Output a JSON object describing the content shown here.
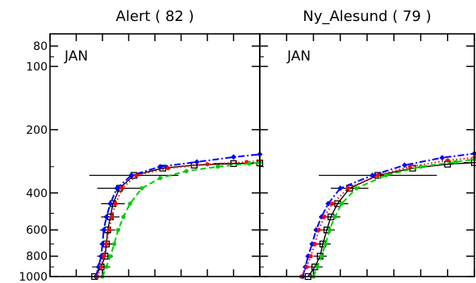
{
  "chart_data": [
    {
      "type": "line",
      "title": "Alert ( 82 )",
      "annotation": "JAN",
      "y_scale": "log",
      "y_reversed": true,
      "ylim": [
        1000,
        70
      ],
      "y_ticks": [
        80,
        100,
        200,
        400,
        600,
        800,
        1000
      ],
      "y_tick_labels": [
        "80",
        "100",
        "200",
        "400",
        "600",
        "800",
        "1000"
      ],
      "x_tick_labels_shown": false,
      "xlim": [
        0,
        8
      ],
      "series": [
        {
          "color": "#000000",
          "style": "solid",
          "marker": "square",
          "points": [
            [
              1.7,
              1000
            ],
            [
              1.95,
              900
            ],
            [
              2.1,
              800
            ],
            [
              2.15,
              700
            ],
            [
              2.2,
              600
            ],
            [
              2.3,
              520
            ],
            [
              2.4,
              450
            ],
            [
              2.65,
              380
            ],
            [
              3.2,
              330
            ],
            [
              4.3,
              305
            ],
            [
              5.5,
              295
            ],
            [
              7.0,
              290
            ],
            [
              8.0,
              288
            ]
          ],
          "errors": [
            0,
            0.35,
            0.3,
            0.25,
            0.3,
            0.35,
            0.45,
            0.85,
            1.7,
            0,
            0,
            0.75,
            0
          ]
        },
        {
          "color": "#0000ff",
          "style": "dashdot",
          "marker": "diamond",
          "points": [
            [
              1.75,
              1000
            ],
            [
              1.85,
              900
            ],
            [
              1.95,
              800
            ],
            [
              2.0,
              700
            ],
            [
              2.05,
              600
            ],
            [
              2.15,
              520
            ],
            [
              2.3,
              450
            ],
            [
              2.55,
              380
            ],
            [
              3.1,
              330
            ],
            [
              4.2,
              300
            ],
            [
              5.6,
              285
            ],
            [
              7.0,
              270
            ],
            [
              8.0,
              262
            ]
          ]
        },
        {
          "color": "#ff0000",
          "style": "dotted",
          "marker": "circle",
          "points": [
            [
              1.8,
              1000
            ],
            [
              1.95,
              900
            ],
            [
              2.05,
              800
            ],
            [
              2.15,
              700
            ],
            [
              2.25,
              600
            ],
            [
              2.35,
              520
            ],
            [
              2.5,
              450
            ],
            [
              2.75,
              380
            ],
            [
              3.3,
              330
            ],
            [
              4.5,
              305
            ],
            [
              6.0,
              292
            ],
            [
              7.5,
              285
            ],
            [
              8.0,
              283
            ]
          ]
        },
        {
          "color": "#00cc00",
          "style": "dashed",
          "marker": "circle",
          "points": [
            [
              2.0,
              1000
            ],
            [
              2.15,
              900
            ],
            [
              2.3,
              800
            ],
            [
              2.45,
              700
            ],
            [
              2.6,
              600
            ],
            [
              2.8,
              520
            ],
            [
              3.05,
              450
            ],
            [
              3.5,
              380
            ],
            [
              4.2,
              340
            ],
            [
              5.2,
              315
            ],
            [
              6.4,
              300
            ],
            [
              7.6,
              290
            ],
            [
              8.0,
              287
            ]
          ]
        }
      ]
    },
    {
      "type": "line",
      "title": "Ny_Alesund ( 79 )",
      "annotation": "JAN",
      "y_scale": "log",
      "y_reversed": true,
      "ylim": [
        1000,
        70
      ],
      "y_ticks": [
        80,
        100,
        200,
        400,
        600,
        800,
        1000
      ],
      "y_tick_labels": [
        "",
        "",
        "",
        "",
        "",
        "",
        ""
      ],
      "x_tick_labels_shown": false,
      "xlim": [
        0,
        8
      ],
      "series": [
        {
          "color": "#000000",
          "style": "solid",
          "marker": "square",
          "points": [
            [
              1.8,
              1000
            ],
            [
              2.05,
              900
            ],
            [
              2.25,
              800
            ],
            [
              2.35,
              700
            ],
            [
              2.5,
              600
            ],
            [
              2.65,
              520
            ],
            [
              2.9,
              450
            ],
            [
              3.35,
              380
            ],
            [
              4.4,
              330
            ],
            [
              5.7,
              305
            ],
            [
              7.0,
              292
            ],
            [
              8.0,
              287
            ]
          ],
          "errors": [
            0,
            0.3,
            0.25,
            0.3,
            0.3,
            0.35,
            0.4,
            0.7,
            2.2,
            0,
            0,
            0.4
          ]
        },
        {
          "color": "#0000ff",
          "style": "dashdot",
          "marker": "diamond",
          "points": [
            [
              1.6,
              1000
            ],
            [
              1.7,
              900
            ],
            [
              1.8,
              800
            ],
            [
              1.95,
              700
            ],
            [
              2.1,
              600
            ],
            [
              2.3,
              520
            ],
            [
              2.55,
              450
            ],
            [
              3.0,
              380
            ],
            [
              4.2,
              330
            ],
            [
              5.4,
              295
            ],
            [
              6.8,
              272
            ],
            [
              8.0,
              260
            ]
          ]
        },
        {
          "color": "#ff0000",
          "style": "dotted",
          "marker": "circle",
          "points": [
            [
              1.55,
              1000
            ],
            [
              1.75,
              900
            ],
            [
              1.9,
              800
            ],
            [
              2.05,
              700
            ],
            [
              2.2,
              600
            ],
            [
              2.4,
              520
            ],
            [
              2.7,
              450
            ],
            [
              3.3,
              380
            ],
            [
              4.4,
              330
            ],
            [
              5.6,
              300
            ],
            [
              7.0,
              280
            ],
            [
              8.0,
              272
            ]
          ]
        },
        {
          "color": "#00cc00",
          "style": "dashed",
          "marker": "circle",
          "points": [
            [
              2.0,
              1000
            ],
            [
              2.15,
              900
            ],
            [
              2.3,
              800
            ],
            [
              2.45,
              700
            ],
            [
              2.6,
              600
            ],
            [
              2.8,
              520
            ],
            [
              3.05,
              450
            ],
            [
              3.6,
              380
            ],
            [
              4.7,
              330
            ],
            [
              6.0,
              300
            ],
            [
              7.3,
              285
            ],
            [
              8.0,
              277
            ]
          ]
        }
      ]
    }
  ]
}
